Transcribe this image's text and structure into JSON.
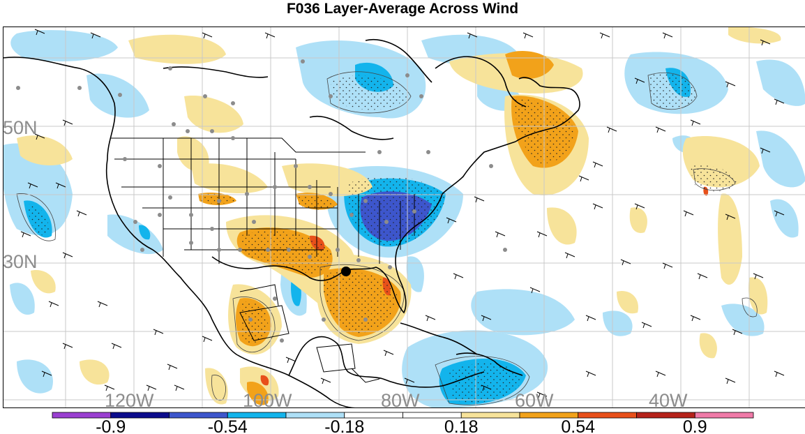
{
  "title": "F036 Layer-Average Across Wind",
  "lat_labels": [
    "50N",
    "30N"
  ],
  "lon_labels": [
    "120W",
    "100W",
    "80W",
    "60W",
    "40W"
  ],
  "colorbar": {
    "colors": [
      "#9a3fd1",
      "#0c0c8c",
      "#3d56cc",
      "#13b4ec",
      "#aee0f7",
      "#ffffff",
      "#ffffff",
      "#f7e39a",
      "#f2a21a",
      "#e8501a",
      "#b5221a",
      "#f07aa8"
    ],
    "tick_labels": [
      "-0.9",
      "-0.54",
      "-0.18",
      "0.18",
      "0.54",
      "0.9"
    ]
  },
  "legend_colors": {
    "negative_light": "#aee0f7",
    "negative_medium": "#13b4ec",
    "negative_strong": "#3d56cc",
    "positive_light": "#f7e39a",
    "positive_medium": "#f2a21a",
    "positive_strong": "#e8501a",
    "station_dot": "#8c8c8c",
    "hurricane_marker": "#000000"
  }
}
